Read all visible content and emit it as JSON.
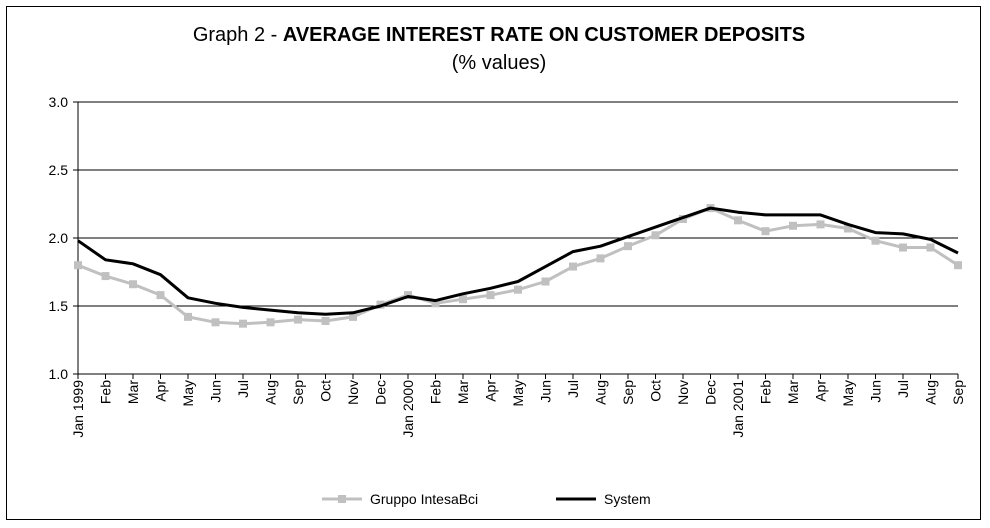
{
  "chart_data": {
    "type": "line",
    "title_prefix": "Graph 2 - ",
    "title_bold": "AVERAGE INTEREST RATE ON CUSTOMER DEPOSITS",
    "subtitle": "(% values)",
    "xlabel": "",
    "ylabel": "",
    "ylim": [
      1.0,
      3.0
    ],
    "yticks": [
      "1.0",
      "1.5",
      "2.0",
      "2.5",
      "3.0"
    ],
    "grid": true,
    "legend_position": "bottom",
    "categories": [
      "Jan 1999",
      "Feb",
      "Mar",
      "Apr",
      "May",
      "Jun",
      "Jul",
      "Aug",
      "Sep",
      "Oct",
      "Nov",
      "Dec",
      "Jan 2000",
      "Feb",
      "Mar",
      "Apr",
      "May",
      "Jun",
      "Jul",
      "Aug",
      "Sep",
      "Oct",
      "Nov",
      "Dec",
      "Jan 2001",
      "Feb",
      "Mar",
      "Apr",
      "May",
      "Jun",
      "Jul",
      "Aug",
      "Sep"
    ],
    "series": [
      {
        "name": "Gruppo IntesaBci",
        "color": "#c0c0c0",
        "marker": "square",
        "values": [
          1.8,
          1.72,
          1.66,
          1.58,
          1.42,
          1.38,
          1.37,
          1.38,
          1.4,
          1.39,
          1.42,
          1.51,
          1.58,
          1.52,
          1.55,
          1.58,
          1.62,
          1.68,
          1.79,
          1.85,
          1.94,
          2.02,
          2.14,
          2.22,
          2.13,
          2.05,
          2.09,
          2.1,
          2.07,
          1.98,
          1.93,
          1.93,
          1.8
        ]
      },
      {
        "name": "System",
        "color": "#000000",
        "marker": "none",
        "values": [
          1.98,
          1.84,
          1.81,
          1.73,
          1.56,
          1.52,
          1.49,
          1.47,
          1.45,
          1.44,
          1.45,
          1.5,
          1.57,
          1.54,
          1.59,
          1.63,
          1.68,
          1.79,
          1.9,
          1.94,
          2.01,
          2.08,
          2.15,
          2.22,
          2.19,
          2.17,
          2.17,
          2.17,
          2.1,
          2.04,
          2.03,
          1.99,
          1.89
        ]
      }
    ]
  }
}
